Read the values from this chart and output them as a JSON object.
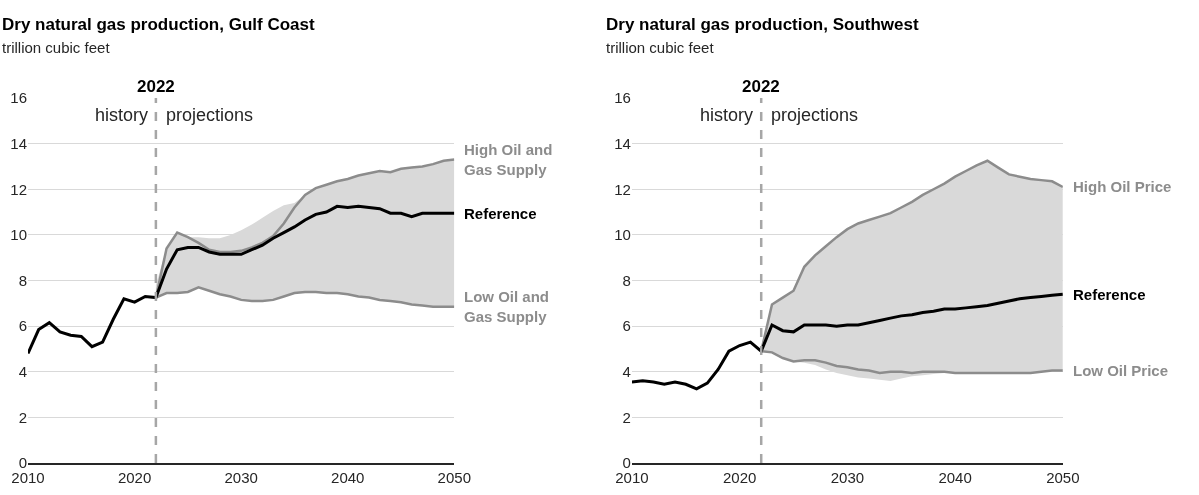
{
  "chart_data": [
    {
      "type": "line",
      "title": "Dry natural gas production, Gulf Coast",
      "subtitle": "trillion cubic feet",
      "x": [
        2010,
        2011,
        2012,
        2013,
        2014,
        2015,
        2016,
        2017,
        2018,
        2019,
        2020,
        2021,
        2022,
        2023,
        2024,
        2025,
        2026,
        2027,
        2028,
        2029,
        2030,
        2031,
        2032,
        2033,
        2034,
        2035,
        2036,
        2037,
        2038,
        2039,
        2040,
        2041,
        2042,
        2043,
        2044,
        2045,
        2046,
        2047,
        2048,
        2049,
        2050
      ],
      "series": [
        {
          "name": "High Oil and Gas Supply",
          "color": "#8c8c8c",
          "values": [
            null,
            null,
            null,
            null,
            null,
            null,
            null,
            null,
            null,
            null,
            null,
            null,
            7.25,
            9.4,
            10.1,
            9.9,
            9.65,
            9.35,
            9.25,
            9.25,
            9.3,
            9.45,
            9.65,
            9.95,
            10.5,
            11.2,
            11.75,
            12.05,
            12.2,
            12.35,
            12.45,
            12.6,
            12.7,
            12.8,
            12.75,
            12.9,
            12.95,
            13.0,
            13.1,
            13.25,
            13.3
          ]
        },
        {
          "name": "Low Oil and Gas Supply",
          "color": "#8c8c8c",
          "values": [
            null,
            null,
            null,
            null,
            null,
            null,
            null,
            null,
            null,
            null,
            null,
            null,
            7.25,
            7.45,
            7.45,
            7.5,
            7.7,
            7.55,
            7.4,
            7.3,
            7.15,
            7.1,
            7.1,
            7.15,
            7.3,
            7.45,
            7.5,
            7.5,
            7.45,
            7.45,
            7.4,
            7.3,
            7.25,
            7.15,
            7.1,
            7.05,
            6.95,
            6.9,
            6.85,
            6.85,
            6.85
          ]
        },
        {
          "name": "Reference",
          "color": "#000000",
          "values": [
            4.8,
            5.85,
            6.15,
            5.75,
            5.6,
            5.55,
            5.1,
            5.3,
            6.3,
            7.2,
            7.05,
            7.3,
            7.25,
            8.5,
            9.35,
            9.45,
            9.45,
            9.25,
            9.15,
            9.15,
            9.15,
            9.35,
            9.55,
            9.85,
            10.1,
            10.35,
            10.65,
            10.9,
            11.0,
            11.25,
            11.2,
            11.25,
            11.2,
            11.15,
            10.95,
            10.95,
            10.8,
            10.95,
            10.95,
            10.95,
            10.95
          ],
          "lower": [
            null,
            null,
            null,
            null,
            null,
            null,
            null,
            null,
            null,
            null,
            null,
            null,
            7.25,
            7.45,
            7.45,
            7.5,
            7.7,
            7.55,
            7.4,
            7.3,
            7.15,
            7.1,
            7.1,
            7.15,
            7.3,
            7.45,
            7.5,
            7.5,
            7.45,
            7.45,
            7.4,
            7.3,
            7.25,
            7.15,
            7.1,
            7.05,
            6.95,
            6.9,
            6.85,
            6.85,
            6.85
          ],
          "upper": [
            null,
            null,
            null,
            null,
            null,
            null,
            null,
            null,
            null,
            null,
            null,
            null,
            7.8,
            9.4,
            10.1,
            9.9,
            9.9,
            9.85,
            9.85,
            10.0,
            10.2,
            10.45,
            10.75,
            11.05,
            11.3,
            11.4,
            11.75,
            12.05,
            12.2,
            12.35,
            12.45,
            12.6,
            12.7,
            12.8,
            12.75,
            12.9,
            12.95,
            13.0,
            13.1,
            13.25,
            13.3
          ]
        }
      ],
      "ref_lines": [
        {
          "axis": "x",
          "value": 2022,
          "label": "2022",
          "color": "#a6a6a6",
          "line_style": "dashed"
        }
      ],
      "annotations": [
        "history",
        "projections"
      ],
      "xlim": [
        2010,
        2050
      ],
      "xticks": [
        2010,
        2020,
        2030,
        2040,
        2050
      ],
      "ylim": [
        0,
        16
      ],
      "yticks": [
        0,
        2,
        4,
        6,
        8,
        10,
        12,
        14,
        16
      ],
      "grid": "y",
      "legend": false,
      "marker": "none",
      "line_style": "solid"
    },
    {
      "type": "line",
      "title": "Dry natural gas production, Southwest",
      "subtitle": "trillion cubic feet",
      "x": [
        2010,
        2011,
        2012,
        2013,
        2014,
        2015,
        2016,
        2017,
        2018,
        2019,
        2020,
        2021,
        2022,
        2023,
        2024,
        2025,
        2026,
        2027,
        2028,
        2029,
        2030,
        2031,
        2032,
        2033,
        2034,
        2035,
        2036,
        2037,
        2038,
        2039,
        2040,
        2041,
        2042,
        2043,
        2044,
        2045,
        2046,
        2047,
        2048,
        2049,
        2050
      ],
      "series": [
        {
          "name": "High Oil Price",
          "color": "#8c8c8c",
          "values": [
            null,
            null,
            null,
            null,
            null,
            null,
            null,
            null,
            null,
            null,
            null,
            null,
            4.9,
            6.95,
            7.25,
            7.55,
            8.6,
            9.1,
            9.5,
            9.9,
            10.25,
            10.5,
            10.65,
            10.8,
            10.95,
            11.2,
            11.45,
            11.75,
            12.0,
            12.25,
            12.55,
            12.8,
            13.05,
            13.25,
            12.95,
            12.65,
            12.55,
            12.45,
            12.4,
            12.35,
            12.1
          ]
        },
        {
          "name": "Low Oil Price",
          "color": "#8c8c8c",
          "values": [
            null,
            null,
            null,
            null,
            null,
            null,
            null,
            null,
            null,
            null,
            null,
            null,
            4.9,
            4.85,
            4.6,
            4.45,
            4.5,
            4.5,
            4.4,
            4.25,
            4.2,
            4.1,
            4.05,
            3.95,
            4.0,
            4.0,
            3.95,
            4.0,
            4.0,
            4.0,
            3.95,
            3.95,
            3.95,
            3.95,
            3.95,
            3.95,
            3.95,
            3.95,
            4.0,
            4.05,
            4.05
          ]
        },
        {
          "name": "Reference",
          "color": "#000000",
          "values": [
            3.55,
            3.6,
            3.55,
            3.45,
            3.55,
            3.45,
            3.25,
            3.5,
            4.1,
            4.9,
            5.15,
            5.3,
            4.9,
            6.05,
            5.8,
            5.75,
            6.05,
            6.05,
            6.05,
            6.0,
            6.05,
            6.05,
            6.15,
            6.25,
            6.35,
            6.45,
            6.5,
            6.6,
            6.65,
            6.75,
            6.75,
            6.8,
            6.85,
            6.9,
            7.0,
            7.1,
            7.2,
            7.25,
            7.3,
            7.35,
            7.4
          ],
          "lower": [
            null,
            null,
            null,
            null,
            null,
            null,
            null,
            null,
            null,
            null,
            null,
            null,
            4.9,
            4.85,
            4.6,
            4.45,
            4.4,
            4.3,
            4.1,
            3.95,
            3.85,
            3.75,
            3.7,
            3.65,
            3.6,
            3.7,
            3.8,
            3.85,
            3.9,
            3.95,
            3.95,
            3.95,
            3.95,
            3.95,
            3.95,
            3.95,
            3.95,
            3.95,
            4.0,
            4.05,
            4.05
          ],
          "upper": [
            null,
            null,
            null,
            null,
            null,
            null,
            null,
            null,
            null,
            null,
            null,
            null,
            4.9,
            6.95,
            7.25,
            7.55,
            8.6,
            9.1,
            9.5,
            9.9,
            10.25,
            10.5,
            10.65,
            10.8,
            10.95,
            11.2,
            11.45,
            11.75,
            12.0,
            12.25,
            12.55,
            12.8,
            13.05,
            13.25,
            12.95,
            12.65,
            12.55,
            12.45,
            12.4,
            12.35,
            12.1
          ]
        }
      ],
      "ref_lines": [
        {
          "axis": "x",
          "value": 2022,
          "label": "2022",
          "color": "#a6a6a6",
          "line_style": "dashed"
        }
      ],
      "annotations": [
        "history",
        "projections"
      ],
      "xlim": [
        2010,
        2050
      ],
      "xticks": [
        2010,
        2020,
        2030,
        2040,
        2050
      ],
      "ylim": [
        0,
        16
      ],
      "yticks": [
        0,
        2,
        4,
        6,
        8,
        10,
        12,
        14,
        16
      ],
      "grid": "y",
      "legend": false,
      "marker": "none",
      "line_style": "solid"
    }
  ]
}
